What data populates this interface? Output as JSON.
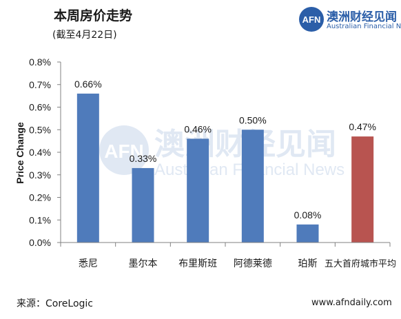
{
  "header": {
    "title": "本周房价走势",
    "subtitle": "(截至4月22日)"
  },
  "brand": {
    "logo_mark": "AFN",
    "name": "澳洲财经见闻",
    "name_en": "Australian Financial News",
    "color": "#2b5ea8"
  },
  "watermark": {
    "mark": "AFN",
    "name": "澳洲财经见闻",
    "name_en": "Australian Financial News"
  },
  "footer": {
    "source": "来源：CoreLogic",
    "website": "www.afndaily.com"
  },
  "chart_data": {
    "type": "bar",
    "title": "本周房价走势",
    "subtitle": "(截至4月22日)",
    "xlabel": "",
    "ylabel": "Price Change",
    "ylim": [
      0,
      0.8
    ],
    "yticks": [
      0.0,
      0.1,
      0.2,
      0.3,
      0.4,
      0.5,
      0.6,
      0.7,
      0.8
    ],
    "ytick_labels": [
      "0.0%",
      "0.1%",
      "0.2%",
      "0.3%",
      "0.4%",
      "0.5%",
      "0.6%",
      "0.7%",
      "0.8%"
    ],
    "grid": false,
    "categories": [
      "悉尼",
      "墨尔本",
      "布里斯班",
      "阿德莱德",
      "珀斯",
      "五大首府城市平均"
    ],
    "values": [
      0.66,
      0.33,
      0.46,
      0.5,
      0.08,
      0.47
    ],
    "data_labels": [
      "0.66%",
      "0.33%",
      "0.46%",
      "0.50%",
      "0.08%",
      "0.47%"
    ],
    "colors": [
      "#4f7bbb",
      "#4f7bbb",
      "#4f7bbb",
      "#4f7bbb",
      "#4f7bbb",
      "#b85450"
    ],
    "axis_color": "#808080"
  }
}
